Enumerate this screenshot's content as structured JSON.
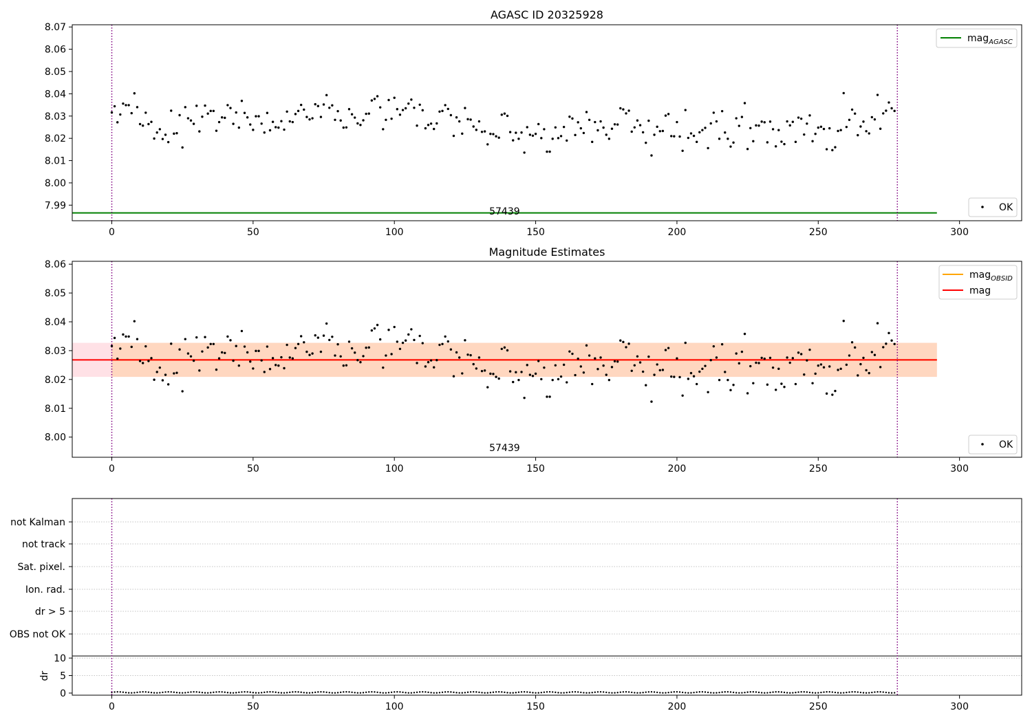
{
  "chart_data": [
    {
      "type": "scatter",
      "title": "AGASC ID 20325928",
      "xlim": [
        -14,
        322
      ],
      "ylim": [
        7.983,
        8.071
      ],
      "x_ticks": [
        0,
        50,
        100,
        150,
        200,
        250,
        300
      ],
      "y_ticks": [
        7.99,
        8.0,
        8.01,
        8.02,
        8.03,
        8.04,
        8.05,
        8.06,
        8.07
      ],
      "y_tick_labels": [
        "7.99",
        "8.00",
        "8.01",
        "8.02",
        "8.03",
        "8.04",
        "8.05",
        "8.06",
        "8.07"
      ],
      "obsid_boundaries": [
        0,
        278
      ],
      "obsid_label": {
        "text": "57439",
        "x": 139
      },
      "mag_agasc": {
        "label": "mag",
        "sub": "AGASC",
        "value": 7.9865,
        "x_range": [
          -14,
          292
        ],
        "color": "#008000"
      },
      "points_legend": "OK",
      "legend_position": "upper right",
      "points_legend_position": "lower right"
    },
    {
      "type": "scatter",
      "title": "Magnitude Estimates",
      "xlim": [
        -14,
        322
      ],
      "ylim": [
        7.993,
        8.061
      ],
      "x_ticks": [
        0,
        50,
        100,
        150,
        200,
        250,
        300
      ],
      "y_ticks": [
        8.0,
        8.01,
        8.02,
        8.03,
        8.04,
        8.05,
        8.06
      ],
      "y_tick_labels": [
        "8.00",
        "8.01",
        "8.02",
        "8.03",
        "8.04",
        "8.05",
        "8.06"
      ],
      "obsid_boundaries": [
        0,
        278
      ],
      "obsid_label": {
        "text": "57439",
        "x": 139
      },
      "mag_obsid": {
        "label": "mag",
        "sub": "OBSID",
        "value": 8.0268,
        "band": [
          8.0209,
          8.0327
        ],
        "x_range": [
          0,
          292
        ],
        "color": "#ffa500",
        "band_color": "#ffd7c0"
      },
      "mag": {
        "label": "mag",
        "value": 8.0268,
        "band": [
          8.0209,
          8.0327
        ],
        "x_range": [
          -14,
          292
        ],
        "color": "#ff0000",
        "band_color": "#ffe1e6"
      },
      "points_legend": "OK",
      "legend_position": "upper right",
      "points_legend_position": "lower right"
    },
    {
      "type": "scatter",
      "xlim": [
        -14,
        322
      ],
      "x_ticks": [
        0,
        50,
        100,
        150,
        200,
        250,
        300
      ],
      "flag_labels": [
        "not Kalman",
        "not track",
        "Sat. pixel.",
        "Ion. rad.",
        "dr > 5",
        "OBS not OK"
      ],
      "obsid_boundaries": [
        0,
        278
      ],
      "dr_ylabel": "dr",
      "dr_ylim": [
        -0.6,
        10.6
      ],
      "dr_y_ticks": [
        0,
        5,
        10
      ],
      "dr_y_tick_labels": [
        "0",
        "5",
        "10"
      ],
      "dr_values": "all near 0 for observations 0-277"
    }
  ],
  "observations": {
    "x": [
      0,
      1,
      2,
      3,
      4,
      5,
      6,
      7,
      8,
      9,
      10,
      11,
      12,
      13,
      14,
      15,
      16,
      17,
      18,
      19,
      20,
      21,
      22,
      23,
      24,
      25,
      26,
      27,
      28,
      29,
      30,
      31,
      32,
      33,
      34,
      35,
      36,
      37,
      38,
      39,
      40,
      41,
      42,
      43,
      44,
      45,
      46,
      47,
      48,
      49,
      50,
      51,
      52,
      53,
      54,
      55,
      56,
      57,
      58,
      59,
      60,
      61,
      62,
      63,
      64,
      65,
      66,
      67,
      68,
      69,
      70,
      71,
      72,
      73,
      74,
      75,
      76,
      77,
      78,
      79,
      80,
      81,
      82,
      83,
      84,
      85,
      86,
      87,
      88,
      89,
      90,
      91,
      92,
      93,
      94,
      95,
      96,
      97,
      98,
      99,
      100,
      101,
      102,
      103,
      104,
      105,
      106,
      107,
      108,
      109,
      110,
      111,
      112,
      113,
      114,
      115,
      116,
      117,
      118,
      119,
      120,
      121,
      122,
      123,
      124,
      125,
      126,
      127,
      128,
      129,
      130,
      131,
      132,
      133,
      134,
      135,
      136,
      137,
      138,
      139,
      140,
      141,
      142,
      143,
      144,
      145,
      146,
      147,
      148,
      149,
      150,
      151,
      152,
      153,
      154,
      155,
      156,
      157,
      158,
      159,
      160,
      161,
      162,
      163,
      164,
      165,
      166,
      167,
      168,
      169,
      170,
      171,
      172,
      173,
      174,
      175,
      176,
      177,
      178,
      179,
      180,
      181,
      182,
      183,
      184,
      185,
      186,
      187,
      188,
      189,
      190,
      191,
      192,
      193,
      194,
      195,
      196,
      197,
      198,
      199,
      200,
      201,
      202,
      203,
      204,
      205,
      206,
      207,
      208,
      209,
      210,
      211,
      212,
      213,
      214,
      215,
      216,
      217,
      218,
      219,
      220,
      221,
      222,
      223,
      224,
      225,
      226,
      227,
      228,
      229,
      230,
      231,
      232,
      233,
      234,
      235,
      236,
      237,
      238,
      239,
      240,
      241,
      242,
      243,
      244,
      245,
      246,
      247,
      248,
      249,
      250,
      251,
      252,
      253,
      254,
      255,
      256,
      257,
      258,
      259,
      260,
      261,
      262,
      263,
      264,
      265,
      266,
      267,
      268,
      269,
      270,
      271,
      272,
      273,
      274,
      275,
      276,
      277
    ],
    "mag": [
      8.0316,
      8.0344,
      8.0272,
      8.0307,
      8.0356,
      8.0349,
      8.0349,
      8.0313,
      8.0402,
      8.034,
      8.0264,
      8.0257,
      8.0315,
      8.0264,
      8.0274,
      8.0199,
      8.0226,
      8.0241,
      8.0197,
      8.0216,
      8.0183,
      8.0324,
      8.0221,
      8.0223,
      8.0304,
      8.0159,
      8.034,
      8.029,
      8.028,
      8.0265,
      8.0346,
      8.0231,
      8.0297,
      8.0347,
      8.0311,
      8.0323,
      8.0323,
      8.0234,
      8.0273,
      8.0294,
      8.0292,
      8.0349,
      8.0336,
      8.0265,
      8.0316,
      8.0248,
      8.0368,
      8.0314,
      8.0294,
      8.0262,
      8.0238,
      8.0299,
      8.0299,
      8.0266,
      8.0226,
      8.0314,
      8.0236,
      8.0274,
      8.025,
      8.0248,
      8.0277,
      8.0239,
      8.032,
      8.0276,
      8.0273,
      8.0309,
      8.0323,
      8.035,
      8.0329,
      8.0296,
      8.0285,
      8.029,
      8.0353,
      8.0345,
      8.0296,
      8.0352,
      8.0394,
      8.0337,
      8.0348,
      8.0283,
      8.0322,
      8.028,
      8.0248,
      8.0249,
      8.0331,
      8.0308,
      8.0293,
      8.0267,
      8.026,
      8.0281,
      8.031,
      8.0311,
      8.037,
      8.0377,
      8.0389,
      8.0339,
      8.0241,
      8.0283,
      8.0372,
      8.0288,
      8.0382,
      8.0331,
      8.0306,
      8.0327,
      8.0335,
      8.0356,
      8.0374,
      8.0337,
      8.0257,
      8.0351,
      8.0326,
      8.0245,
      8.026,
      8.0266,
      8.0242,
      8.0267,
      8.032,
      8.0323,
      8.0349,
      8.0332,
      8.0304,
      8.0211,
      8.0294,
      8.0276,
      8.0221,
      8.0336,
      8.0286,
      8.0284,
      8.0253,
      8.0238,
      8.0276,
      8.0229,
      8.0231,
      8.0173,
      8.022,
      8.0219,
      8.0209,
      8.0203,
      8.0306,
      8.0311,
      8.0301,
      8.0228,
      8.0191,
      8.0225,
      8.0198,
      8.0226,
      8.0136,
      8.025,
      8.0216,
      8.0212,
      8.022,
      8.0264,
      8.0201,
      8.0241,
      8.014,
      8.014,
      8.0198,
      8.0249,
      8.0201,
      8.021,
      8.0251,
      8.019,
      8.0297,
      8.0289,
      8.0215,
      8.0272,
      8.0245,
      8.0224,
      8.0318,
      8.0283,
      8.0184,
      8.0273,
      8.0236,
      8.0276,
      8.0248,
      8.0216,
      8.0198,
      8.0243,
      8.0263,
      8.0262,
      8.0335,
      8.033,
      8.0312,
      8.0324,
      8.023,
      8.0249,
      8.028,
      8.0259,
      8.0227,
      8.018,
      8.0279,
      8.0123,
      8.0216,
      8.0252,
      8.0232,
      8.0233,
      8.0302,
      8.0309,
      8.021,
      8.0209,
      8.0273,
      8.0208,
      8.0144,
      8.0327,
      8.0202,
      8.0222,
      8.0211,
      8.0184,
      8.0227,
      8.0237,
      8.0247,
      8.0156,
      8.0267,
      8.0315,
      8.0276,
      8.0198,
      8.0322,
      8.0226,
      8.0198,
      8.0163,
      8.0181,
      8.029,
      8.0256,
      8.0296,
      8.0358,
      8.0152,
      8.0246,
      8.0187,
      8.0258,
      8.0257,
      8.0275,
      8.0272,
      8.0182,
      8.0275,
      8.0241,
      8.0164,
      8.0237,
      8.0185,
      8.0174,
      8.0276,
      8.0258,
      8.0274,
      8.0184,
      8.0293,
      8.0288,
      8.0217,
      8.0266,
      8.0303,
      8.0187,
      8.022,
      8.0248,
      8.0252,
      8.0242,
      8.0151,
      8.0245,
      8.0147,
      8.016,
      8.0233,
      8.0237,
      8.0403,
      8.0251,
      8.0283,
      8.0329,
      8.0311,
      8.0214,
      8.0253,
      8.0275,
      8.0232,
      8.0222,
      8.0295,
      8.0285,
      8.0395,
      8.0243,
      8.0312,
      8.0324,
      8.0361,
      8.0335,
      8.0323,
      8.0306,
      8.0267
    ]
  }
}
